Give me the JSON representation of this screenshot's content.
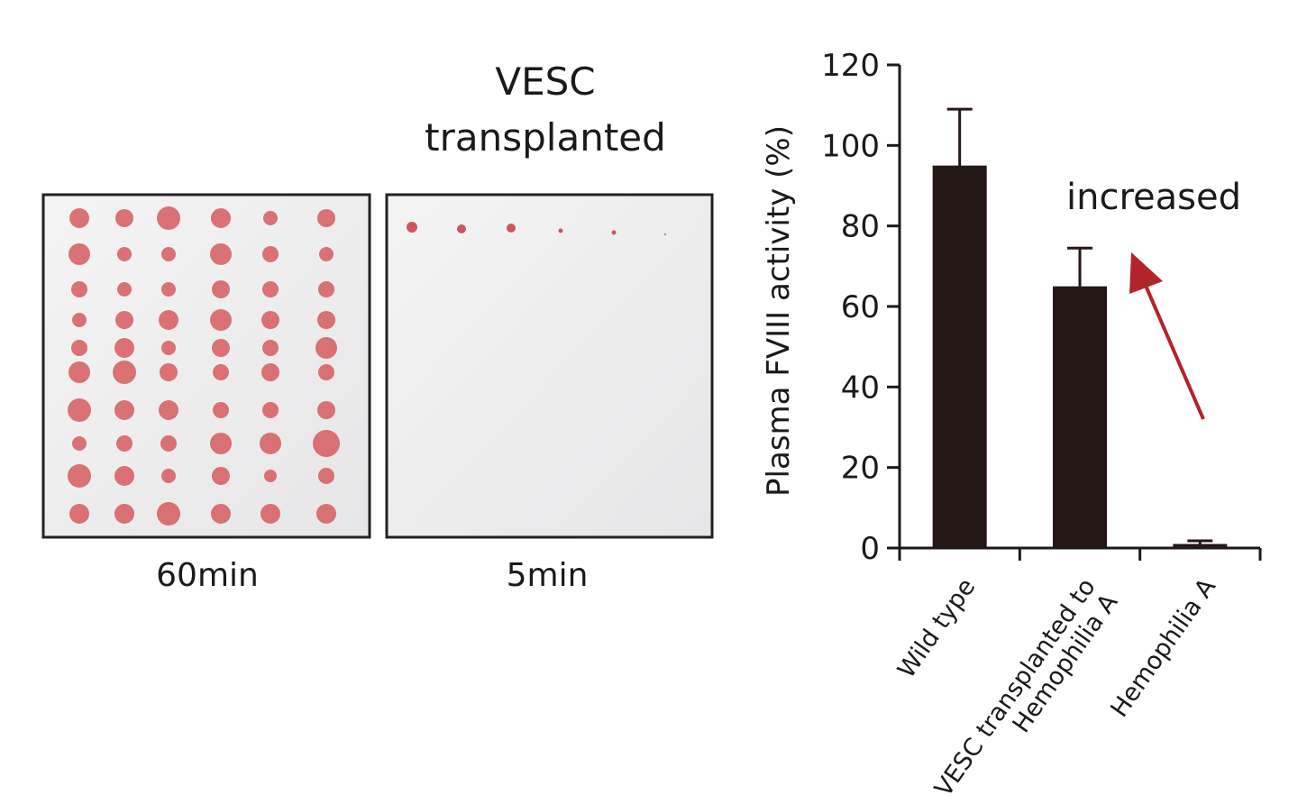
{
  "panels": {
    "header": "VESC\ntransplanted",
    "left_caption": "60min",
    "right_caption": "5min"
  },
  "chart_data": {
    "type": "bar",
    "ylabel": "Plasma FVIII activity (%)",
    "annotation": "increased",
    "categories": [
      "Wild type",
      "VESC transplanted to\nHemophilia A",
      "Hemophilia A"
    ],
    "values": [
      95,
      65,
      1
    ],
    "errors": [
      14,
      9.5,
      0.8
    ],
    "color": "#231815",
    "ylim": [
      0,
      120
    ],
    "yticks": [
      0,
      20,
      40,
      60,
      80,
      100,
      120
    ]
  }
}
